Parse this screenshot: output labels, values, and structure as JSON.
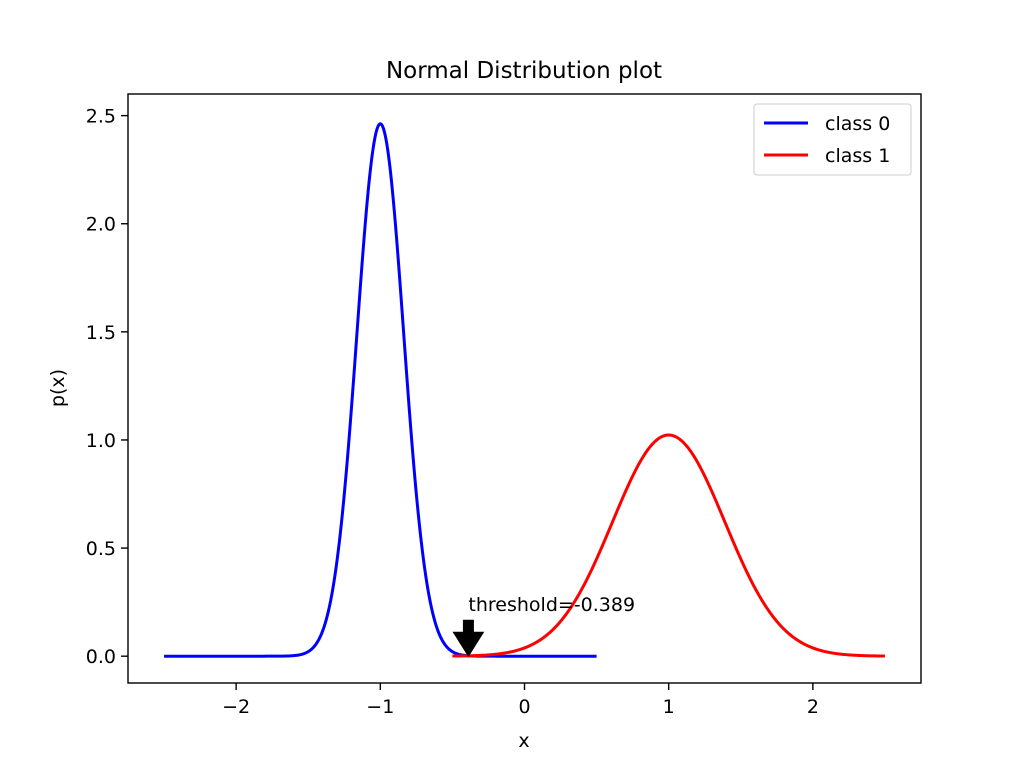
{
  "chart_data": {
    "type": "line",
    "title": "Normal Distribution plot",
    "xlabel": "x",
    "ylabel": "p(x)",
    "xlim": [
      -2.75,
      2.75
    ],
    "ylim": [
      -0.124,
      2.6
    ],
    "xticks": [
      -2,
      -1,
      0,
      1,
      2
    ],
    "xtick_labels": [
      "−2",
      "−1",
      "0",
      "1",
      "2"
    ],
    "yticks": [
      0.0,
      0.5,
      1.0,
      1.5,
      2.0,
      2.5
    ],
    "ytick_labels": [
      "0.0",
      "0.5",
      "1.0",
      "1.5",
      "2.0",
      "2.5"
    ],
    "grid": false,
    "legend_position": "top-right",
    "series": [
      {
        "name": "class 0",
        "color": "#0000ff",
        "distribution": "normal",
        "mean": -1.0,
        "std": 0.162,
        "x_range": [
          -2.5,
          0.5
        ]
      },
      {
        "name": "class 1",
        "color": "#ff0000",
        "distribution": "normal",
        "mean": 1.0,
        "std": 0.39,
        "x_range": [
          -0.5,
          2.5
        ]
      }
    ],
    "annotations": [
      {
        "text": "threshold=-0.389",
        "x": -0.389,
        "y": 0.0,
        "arrow": "down",
        "color": "#000000"
      }
    ]
  }
}
